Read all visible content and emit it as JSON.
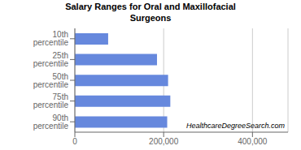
{
  "chart_data": {
    "type": "bar",
    "orientation": "horizontal",
    "title": "Salary Ranges for Oral and Maxillofacial\nSurgeons",
    "categories": [
      "10th percentile",
      "25th percentile",
      "50th percentile",
      "75th percentile",
      "90th percentile"
    ],
    "values": [
      75000,
      185000,
      210000,
      215000,
      208000
    ],
    "color": "#6688dd",
    "xlim": [
      0,
      480000
    ],
    "xticks": [
      0,
      {
        "value": 200000,
        "label": "200,000"
      },
      {
        "value": 400000,
        "label": "400,000"
      }
    ],
    "grid": true,
    "annotation": "HealthcareDegreeSearch.com"
  }
}
